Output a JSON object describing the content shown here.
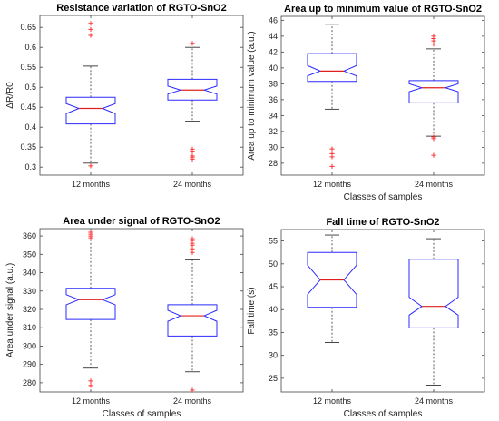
{
  "chart_data": [
    {
      "type": "boxplot",
      "title": "Resistance variation of RGTO-SnO2",
      "xlabel": "",
      "ylabel": "ΔR/R0",
      "ylim": [
        0.28,
        0.68
      ],
      "yticks": [
        0.3,
        0.35,
        0.4,
        0.45,
        0.5,
        0.55,
        0.6,
        0.65
      ],
      "ytick_labels": [
        "0.3",
        "0.35",
        "0.4",
        "0.45",
        "0.5",
        "0.55",
        "0.6",
        "0.65"
      ],
      "categories": [
        "12 months",
        "24 months"
      ],
      "boxes": [
        {
          "whisker_low": 0.31,
          "q1": 0.408,
          "median": 0.447,
          "q3": 0.475,
          "whisker_high": 0.553,
          "notch_low": 0.434,
          "notch_high": 0.459,
          "outliers": [
            0.303,
            0.63,
            0.645,
            0.66
          ]
        },
        {
          "whisker_low": 0.415,
          "q1": 0.468,
          "median": 0.493,
          "q3": 0.52,
          "whisker_high": 0.6,
          "notch_low": 0.483,
          "notch_high": 0.503,
          "outliers": [
            0.32,
            0.325,
            0.328,
            0.34,
            0.345,
            0.61
          ]
        }
      ]
    },
    {
      "type": "boxplot",
      "title": "Area up to minimum value of RGTO-SnO2",
      "xlabel": "Classes of samples",
      "ylabel": "Area up to minimum value (a.u.)",
      "ylim": [
        26.5,
        46.5
      ],
      "yticks": [
        28,
        30,
        32,
        34,
        36,
        38,
        40,
        42,
        44,
        46
      ],
      "ytick_labels": [
        "28",
        "30",
        "32",
        "34",
        "36",
        "38",
        "40",
        "42",
        "44",
        "46"
      ],
      "categories": [
        "12 months",
        "24 months"
      ],
      "boxes": [
        {
          "whisker_low": 34.8,
          "q1": 38.3,
          "median": 39.6,
          "q3": 41.8,
          "whisker_high": 45.5,
          "notch_low": 39.0,
          "notch_high": 40.3,
          "outliers": [
            27.6,
            28.8,
            29.2,
            29.8
          ]
        },
        {
          "whisker_low": 31.4,
          "q1": 35.6,
          "median": 37.5,
          "q3": 38.4,
          "whisker_high": 42.4,
          "notch_low": 37.0,
          "notch_high": 38.0,
          "outliers": [
            29.0,
            31.1,
            31.3,
            43.0,
            43.4,
            43.7,
            44.0
          ]
        }
      ]
    },
    {
      "type": "boxplot",
      "title": "Area under signal of RGTO-SnO2",
      "xlabel": "Classes of samples",
      "ylabel": "Area under signal (a.u.)",
      "ylim": [
        275,
        364
      ],
      "yticks": [
        280,
        290,
        300,
        310,
        320,
        330,
        340,
        350,
        360
      ],
      "ytick_labels": [
        "280",
        "290",
        "300",
        "310",
        "320",
        "330",
        "340",
        "350",
        "360"
      ],
      "categories": [
        "12 months",
        "24 months"
      ],
      "boxes": [
        {
          "whisker_low": 288,
          "q1": 314.5,
          "median": 325.3,
          "q3": 331.5,
          "whisker_high": 357.8,
          "notch_low": 322.5,
          "notch_high": 328.0,
          "outliers": [
            278.5,
            281.0,
            359.0,
            360.0,
            361.0,
            362.0
          ]
        },
        {
          "whisker_low": 286,
          "q1": 305.5,
          "median": 316.5,
          "q3": 322.5,
          "whisker_high": 347,
          "notch_low": 313.5,
          "notch_high": 319.5,
          "outliers": [
            276.0,
            351.0,
            353.0,
            355.0,
            356.0,
            357.5,
            358.5
          ]
        }
      ]
    },
    {
      "type": "boxplot",
      "title": "Fall time of RGTO-SnO2",
      "xlabel": "Classes of samples",
      "ylabel": "Fall time (s)",
      "ylim": [
        22,
        57.5
      ],
      "yticks": [
        25,
        30,
        35,
        40,
        45,
        50,
        55
      ],
      "ytick_labels": [
        "25",
        "30",
        "35",
        "40",
        "45",
        "50",
        "55"
      ],
      "categories": [
        "12 months",
        "24 months"
      ],
      "boxes": [
        {
          "whisker_low": 32.8,
          "q1": 40.5,
          "median": 46.5,
          "q3": 52.5,
          "whisker_high": 56.3,
          "notch_low": 43.3,
          "notch_high": 49.7,
          "outliers": []
        },
        {
          "whisker_low": 23.5,
          "q1": 36.0,
          "median": 40.7,
          "q3": 51.0,
          "whisker_high": 55.5,
          "notch_low": 38.8,
          "notch_high": 42.7,
          "outliers": []
        }
      ]
    }
  ]
}
